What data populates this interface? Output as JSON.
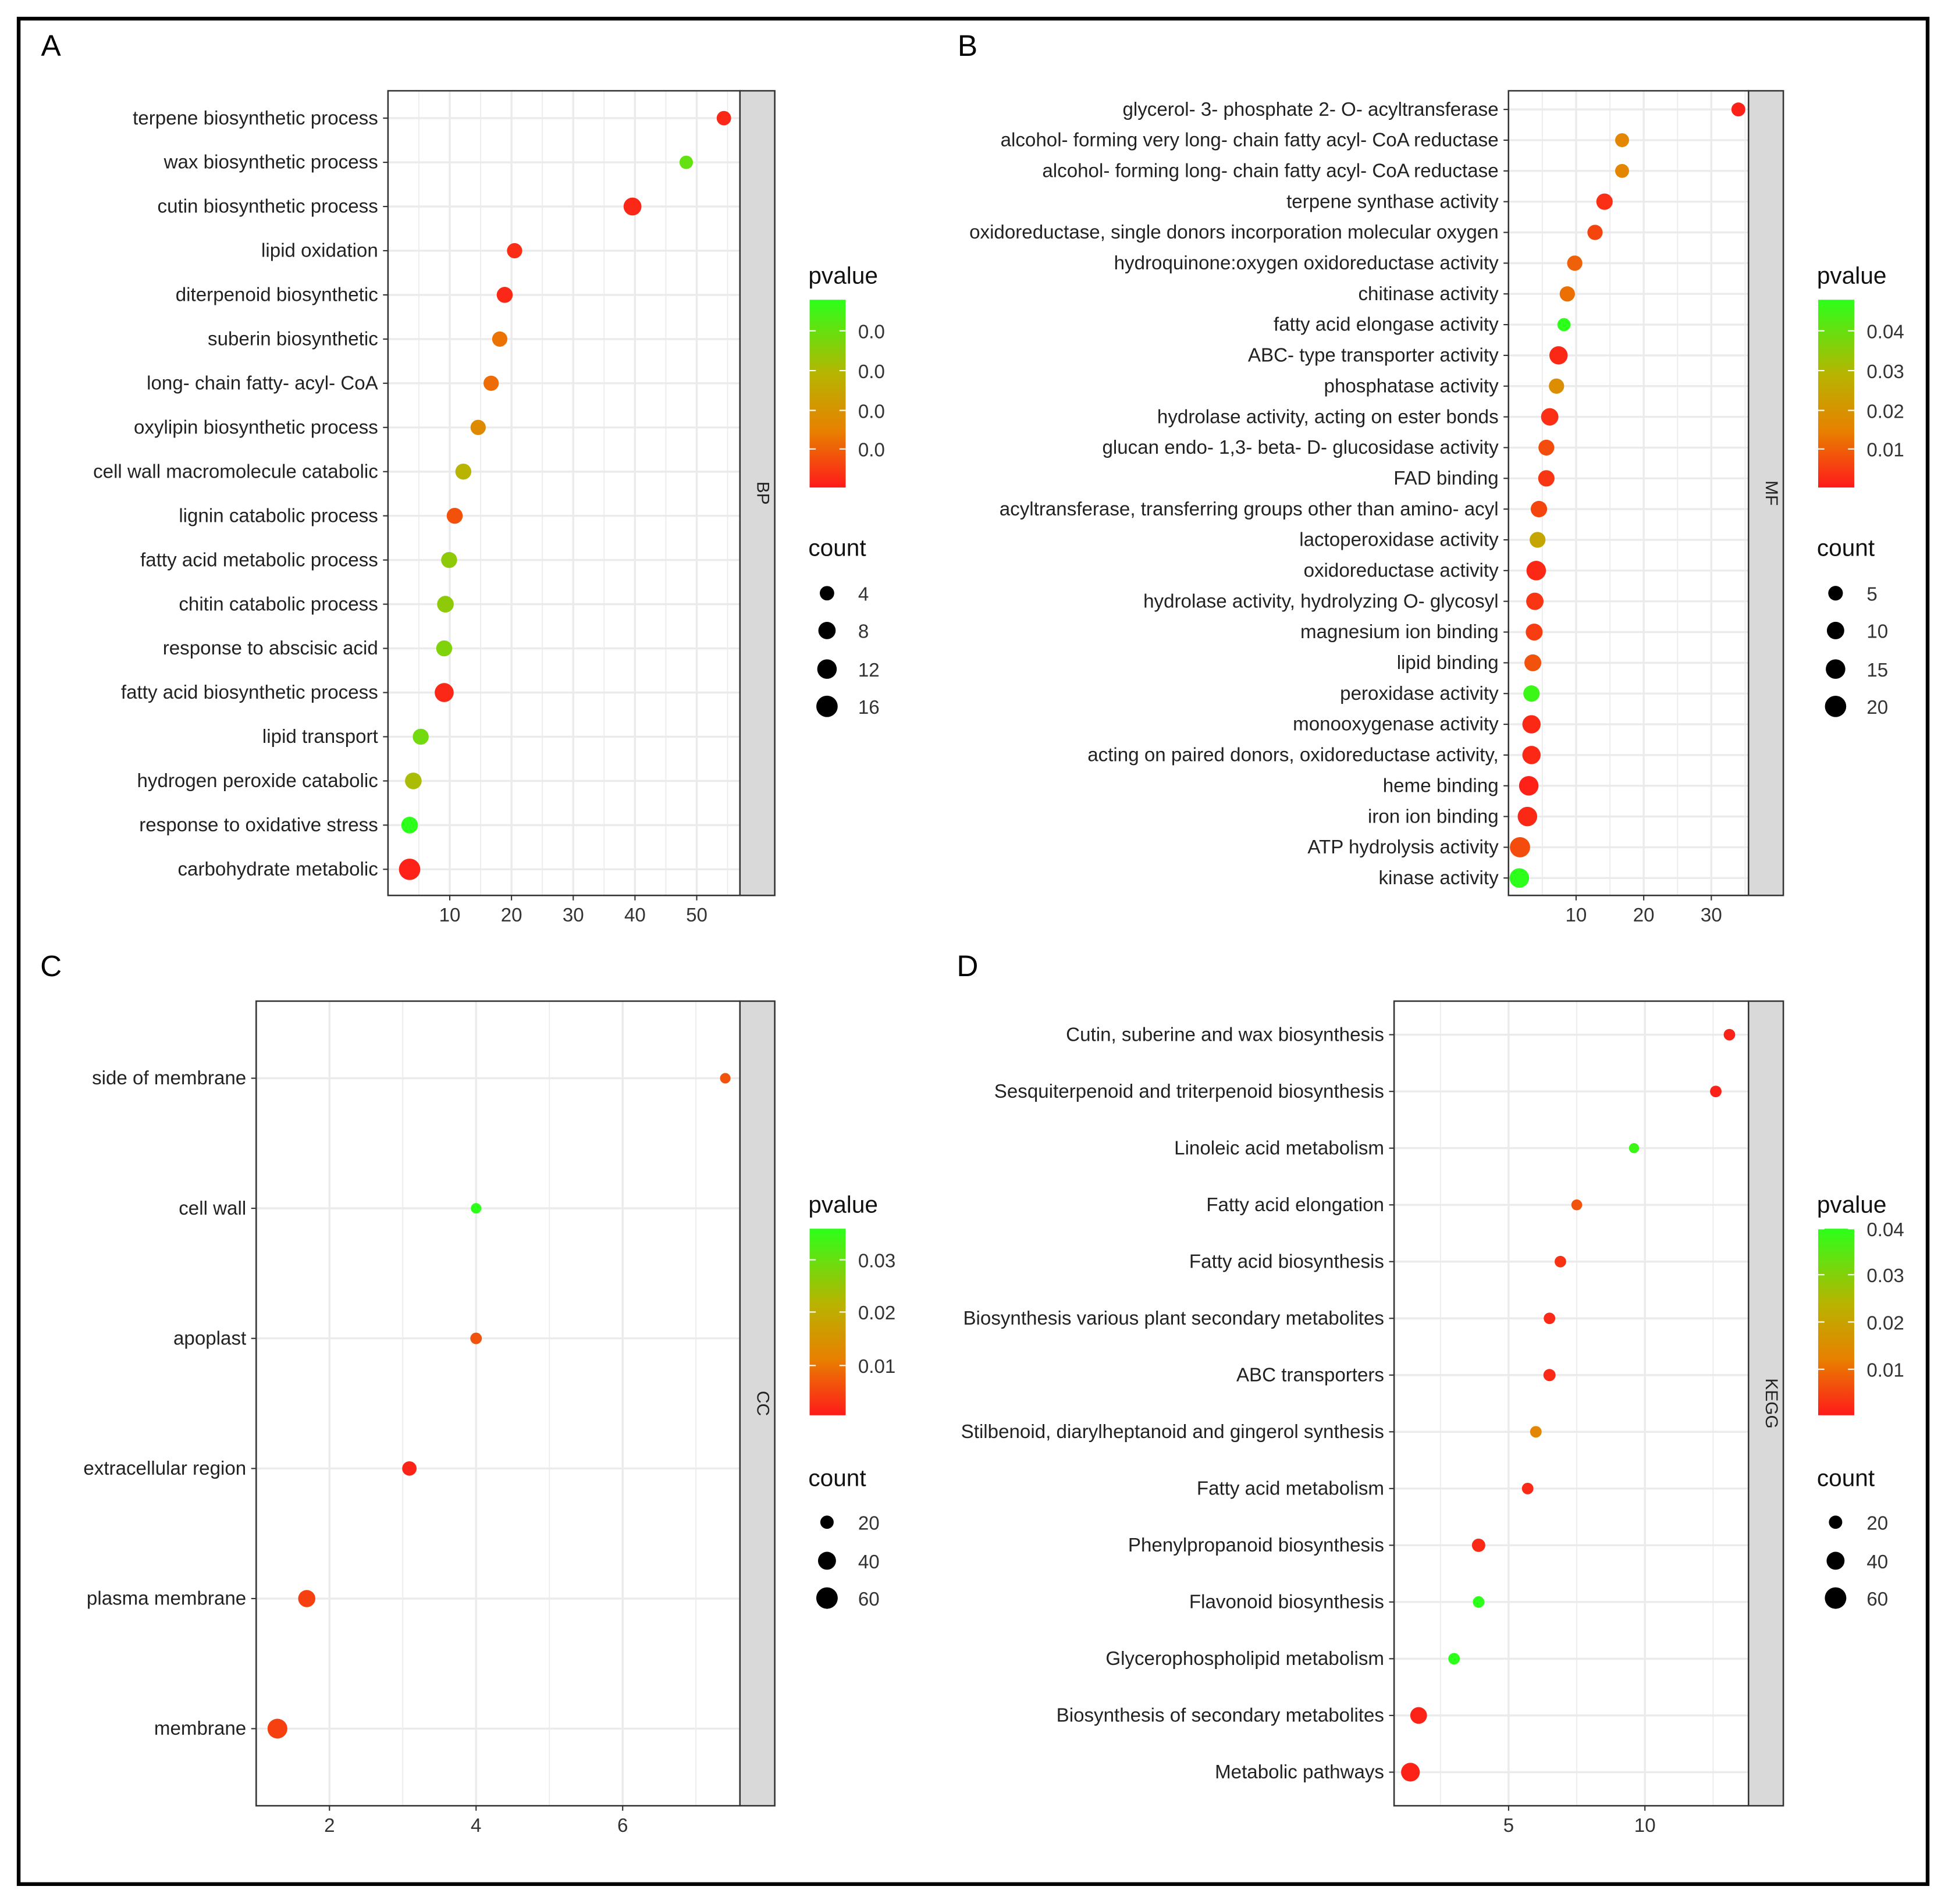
{
  "chart_data": [
    {
      "type": "scatter",
      "panel": "A",
      "strip": "BP",
      "xlim": [
        0,
        57
      ],
      "xticks": [
        10,
        20,
        30,
        40,
        50
      ],
      "legend": {
        "color_title": "pvalue",
        "color_labels": [
          "0.0",
          "0.0",
          "0.0",
          "0.0"
        ],
        "color_range": [
          0,
          0.05
        ],
        "size_title": "count",
        "size_labels": [
          "4",
          "8",
          "12",
          "16"
        ],
        "size_values": [
          4,
          8,
          12,
          16
        ]
      },
      "terms": [
        "terpene biosynthetic process",
        "wax biosynthetic process",
        "cutin biosynthetic process",
        "lipid oxidation",
        "diterpenoid biosynthetic",
        "suberin biosynthetic",
        "long- chain fatty- acyl- CoA",
        "oxylipin biosynthetic process",
        "cell wall macromolecule catabolic",
        "lignin catabolic process",
        "fatty acid metabolic process",
        "chitin catabolic process",
        "response to abscisic acid",
        "fatty acid biosynthetic process",
        "lipid transport",
        "hydrogen peroxide catabolic",
        "response to oxidative stress",
        "carbohydrate metabolic"
      ],
      "x": [
        54.4,
        48.3,
        39.6,
        20.5,
        18.9,
        18.1,
        16.7,
        14.6,
        12.2,
        10.8,
        9.9,
        9.3,
        9.1,
        9.1,
        5.3,
        4.1,
        3.5,
        3.5
      ],
      "pvalue": [
        0.002,
        0.042,
        0.002,
        0.003,
        0.002,
        0.013,
        0.012,
        0.018,
        0.03,
        0.008,
        0.036,
        0.036,
        0.038,
        0.002,
        0.04,
        0.032,
        0.05,
        0.001
      ],
      "count": [
        4,
        3,
        9,
        5,
        6,
        5,
        5,
        5,
        6,
        6,
        6,
        7,
        6,
        11,
        6,
        7,
        7,
        16
      ]
    },
    {
      "type": "scatter",
      "panel": "B",
      "strip": "MF",
      "xlim": [
        0,
        35.5
      ],
      "xticks": [
        10,
        20,
        30
      ],
      "legend": {
        "color_title": "pvalue",
        "color_labels": [
          "0.04",
          "0.03",
          "0.02",
          "0.01"
        ],
        "color_range": [
          0,
          0.048
        ],
        "size_title": "count",
        "size_labels": [
          "5",
          "10",
          "15",
          "20"
        ],
        "size_values": [
          5,
          10,
          15,
          20
        ]
      },
      "terms": [
        "glycerol- 3- phosphate 2- O- acyltransferase",
        "alcohol- forming very long- chain fatty acyl- CoA reductase",
        "alcohol- forming long- chain fatty acyl- CoA reductase",
        "terpene synthase activity",
        "oxidoreductase, single donors incorporation molecular oxygen",
        "hydroquinone:oxygen oxidoreductase activity",
        "chitinase activity",
        "fatty acid elongase activity",
        "ABC- type transporter activity",
        "phosphatase activity",
        "hydrolase activity, acting on ester bonds",
        "glucan endo- 1,3- beta- D- glucosidase activity",
        "FAD binding",
        "acyltransferase, transferring groups other than amino- acyl",
        "lactoperoxidase activity",
        "oxidoreductase activity",
        "hydrolase activity, hydrolyzing O- glycosyl",
        "magnesium ion binding",
        "lipid binding",
        "peroxidase activity",
        "monooxygenase activity",
        "acting on paired donors, oxidoreductase activity,",
        "heme binding",
        "iron ion binding",
        "ATP hydrolysis activity",
        "kinase activity"
      ],
      "x": [
        34,
        16.8,
        16.8,
        14.2,
        12.8,
        9.8,
        8.7,
        8.2,
        7.4,
        7.1,
        6.1,
        5.6,
        5.6,
        4.5,
        4.3,
        4.1,
        3.9,
        3.8,
        3.6,
        3.4,
        3.4,
        3.4,
        3.0,
        2.8,
        1.7,
        1.6
      ],
      "pvalue": [
        0.001,
        0.016,
        0.016,
        0.003,
        0.006,
        0.01,
        0.012,
        0.048,
        0.002,
        0.018,
        0.003,
        0.007,
        0.004,
        0.006,
        0.025,
        0.002,
        0.004,
        0.005,
        0.008,
        0.046,
        0.002,
        0.002,
        0.001,
        0.002,
        0.007,
        0.048
      ],
      "count": [
        4,
        4,
        4,
        8,
        6,
        6,
        6,
        3,
        12,
        6,
        10,
        7,
        8,
        8,
        7,
        15,
        10,
        9,
        9,
        8,
        12,
        12,
        15,
        15,
        17,
        15
      ]
    },
    {
      "type": "scatter",
      "panel": "C",
      "strip": "CC",
      "xlim": [
        1,
        7.6
      ],
      "xticks": [
        2,
        4,
        6
      ],
      "legend": {
        "color_title": "pvalue",
        "color_labels": [
          "0.03",
          "0.02",
          "0.01"
        ],
        "color_range": [
          0,
          0.036
        ],
        "size_title": "count",
        "size_labels": [
          "20",
          "40",
          "60"
        ],
        "size_values": [
          20,
          40,
          60
        ]
      },
      "terms": [
        "side of membrane",
        "cell wall",
        "apoplast",
        "extracellular region",
        "plasma membrane",
        "membrane"
      ],
      "x": [
        7.4,
        4.0,
        4.0,
        3.09,
        1.69,
        1.29
      ],
      "pvalue": [
        0.006,
        0.036,
        0.006,
        0.001,
        0.004,
        0.004
      ],
      "count": [
        11,
        11,
        14,
        24,
        36,
        50
      ]
    },
    {
      "type": "scatter",
      "panel": "D",
      "strip": "KEGG",
      "xlim": [
        0.8,
        13.8
      ],
      "xticks": [
        5,
        10
      ],
      "legend": {
        "color_title": "pvalue",
        "color_labels": [
          "0.04",
          "0.03",
          "0.02",
          "0.01"
        ],
        "color_range": [
          0,
          0.042
        ],
        "size_title": "count",
        "size_labels": [
          "20",
          "40",
          "60"
        ],
        "size_values": [
          20,
          40,
          60
        ]
      },
      "terms": [
        "Cutin, suberine and wax biosynthesis",
        "Sesquiterpenoid and triterpenoid biosynthesis",
        "Linoleic acid metabolism",
        "Fatty acid elongation",
        "Fatty acid biosynthesis",
        "Biosynthesis various plant secondary metabolites",
        "ABC transporters",
        "Stilbenoid, diarylheptanoid and gingerol synthesis",
        "Fatty acid metabolism",
        "Phenylpropanoid biosynthesis",
        "Flavonoid biosynthesis",
        "Glycerophospholipid metabolism",
        "Biosynthesis of secondary metabolites",
        "Metabolic pathways"
      ],
      "x": [
        13.1,
        12.6,
        9.6,
        7.5,
        6.9,
        6.5,
        6.5,
        6.0,
        5.7,
        3.9,
        3.9,
        3.0,
        1.7,
        1.4
      ],
      "pvalue": [
        0.001,
        0.001,
        0.04,
        0.007,
        0.003,
        0.002,
        0.002,
        0.014,
        0.002,
        0.002,
        0.042,
        0.042,
        0.001,
        0.001
      ],
      "count": [
        14,
        14,
        10,
        12,
        14,
        14,
        16,
        14,
        14,
        20,
        14,
        14,
        34,
        44
      ]
    }
  ]
}
